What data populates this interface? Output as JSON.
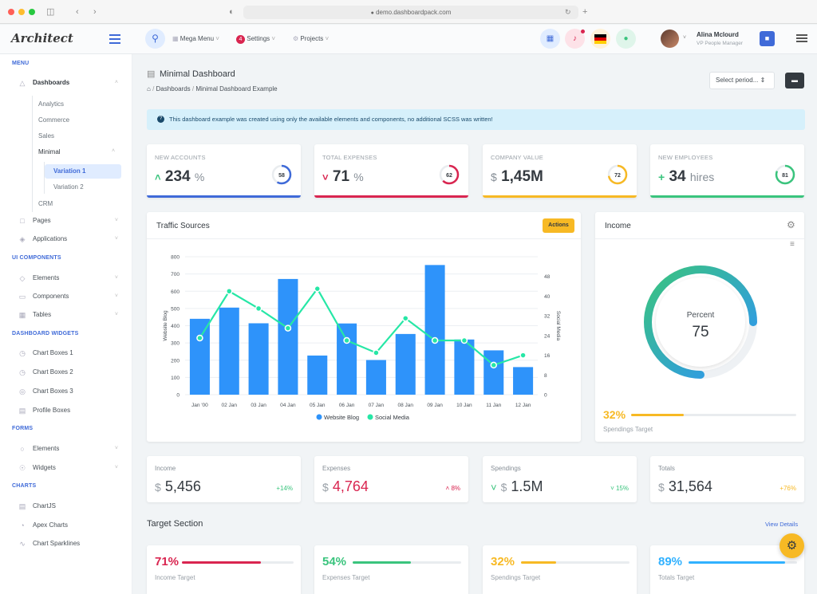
{
  "browser": {
    "url": "demo.dashboardpack.com"
  },
  "header": {
    "logo": "Architect",
    "nav": [
      {
        "label": "Mega Menu"
      },
      {
        "label": "Settings"
      },
      {
        "label": "Projects"
      }
    ],
    "user": {
      "name": "Alina Mclourd",
      "role": "VP People Manager"
    }
  },
  "sidebar": {
    "sections": [
      {
        "title": "MENU"
      },
      {
        "title": "UI COMPONENTS"
      },
      {
        "title": "DASHBOARD WIDGETS"
      },
      {
        "title": "FORMS"
      },
      {
        "title": "CHARTS"
      }
    ],
    "dashboards": "Dashboards",
    "sub": [
      "Analytics",
      "Commerce",
      "Sales",
      "Minimal",
      "Variation 1",
      "Variation 2",
      "CRM"
    ],
    "items": [
      "Pages",
      "Applications",
      "Elements",
      "Components",
      "Tables",
      "Chart Boxes 1",
      "Chart Boxes 2",
      "Chart Boxes 3",
      "Profile Boxes",
      "Elements",
      "Widgets",
      "ChartJS",
      "Apex Charts",
      "Chart Sparklines"
    ]
  },
  "page": {
    "title": "Minimal Dashboard",
    "breadcrumb": [
      "Dashboards",
      "Minimal Dashboard Example"
    ],
    "period_select": "Select period...",
    "alert": "This dashboard example was created using only the available elements and components, no additional SCSS was written!"
  },
  "widgets": [
    {
      "label": "NEW ACCOUNTS",
      "prefix": "",
      "value": "234",
      "unit": "%",
      "ring": "58",
      "progress": 0.58,
      "color": "#3f6ad8",
      "arrow": "up"
    },
    {
      "label": "TOTAL EXPENSES",
      "prefix": "",
      "value": "71",
      "unit": "%",
      "ring": "62",
      "progress": 0.62,
      "color": "#d92550",
      "arrow": "down"
    },
    {
      "label": "COMPANY VALUE",
      "prefix": "$",
      "value": "1,45M",
      "unit": "",
      "ring": "72",
      "progress": 0.72,
      "color": "#f7b924",
      "arrow": ""
    },
    {
      "label": "NEW EMPLOYEES",
      "prefix": "+",
      "value": "34",
      "unit": "hires",
      "ring": "81",
      "progress": 0.81,
      "color": "#3ac47d",
      "arrow": ""
    }
  ],
  "traffic": {
    "title": "Traffic Sources",
    "actions": "Actions"
  },
  "chart_data": {
    "type": "bar",
    "categories": [
      "Jan '00",
      "02 Jan",
      "03 Jan",
      "04 Jan",
      "05 Jan",
      "06 Jan",
      "07 Jan",
      "08 Jan",
      "09 Jan",
      "10 Jan",
      "11 Jan",
      "12 Jan"
    ],
    "series": [
      {
        "name": "Website Blog",
        "type": "bar",
        "axis": "left",
        "color": "#2e93fa",
        "values": [
          440,
          505,
          414,
          671,
          227,
          413,
          201,
          352,
          752,
          320,
          257,
          160
        ]
      },
      {
        "name": "Social Media",
        "type": "line",
        "axis": "right",
        "color": "#26e7a6",
        "values": [
          23,
          42,
          35,
          27,
          43,
          22,
          17,
          31,
          22,
          22,
          12,
          16
        ]
      }
    ],
    "ylabel": "Website Blog",
    "y2label": "Social Media",
    "ylim": [
      0,
      800
    ],
    "yticks": [
      0,
      100,
      200,
      300,
      400,
      500,
      600,
      700,
      800
    ],
    "y2lim": [
      0,
      56
    ],
    "y2ticks": [
      0,
      8,
      16,
      24,
      32,
      40,
      48
    ],
    "legend": "bottom",
    "grid": true
  },
  "income": {
    "title": "Income",
    "center_label": "Percent",
    "center_value": "75",
    "progress": 0.75,
    "target_pct": "32%",
    "target_progress": 0.32,
    "target_label": "Spendings Target"
  },
  "stats": [
    {
      "label": "Income",
      "value": "5,456",
      "pct": "+14%",
      "color": "#343a40",
      "pct_color": "#3ac47d",
      "arrow": ""
    },
    {
      "label": "Expenses",
      "value": "4,764",
      "pct": "8%",
      "color": "#d92550",
      "pct_color": "#d92550",
      "arrow": "^"
    },
    {
      "label": "Spendings",
      "value": "1.5M",
      "pct": "15%",
      "color": "#343a40",
      "pct_color": "#3ac47d",
      "arrow": "v"
    },
    {
      "label": "Totals",
      "value": "31,564",
      "pct": "+76%",
      "color": "#343a40",
      "pct_color": "#f7b924",
      "arrow": ""
    }
  ],
  "target": {
    "title": "Target Section",
    "view": "View Details",
    "items": [
      {
        "pct": "71%",
        "label": "Income Target",
        "progress": 0.71,
        "color": "#d92550"
      },
      {
        "pct": "54%",
        "label": "Expenses Target",
        "progress": 0.54,
        "color": "#3ac47d"
      },
      {
        "pct": "32%",
        "label": "Spendings Target",
        "progress": 0.32,
        "color": "#f7b924"
      },
      {
        "pct": "89%",
        "label": "Totals Target",
        "progress": 0.89,
        "color": "#30b1ff"
      }
    ]
  }
}
